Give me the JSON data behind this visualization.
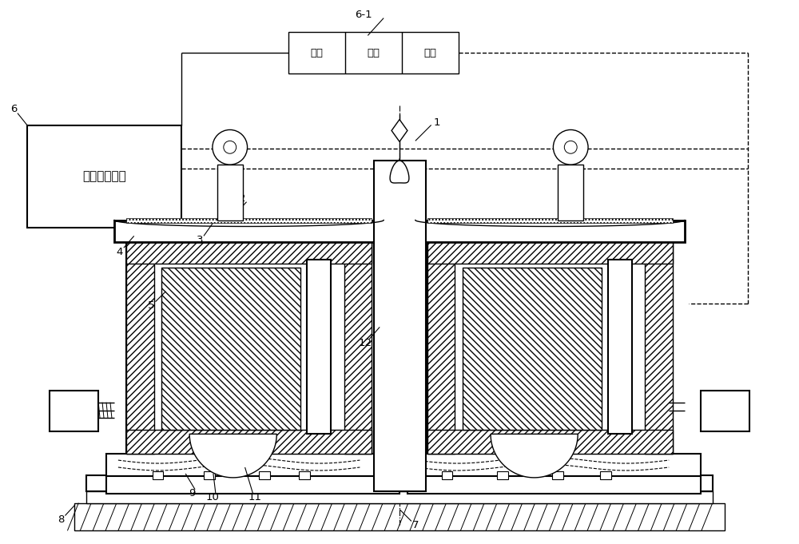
{
  "bg_color": "#ffffff",
  "fig_width": 10.0,
  "fig_height": 6.81,
  "dpi": 100,
  "label_6_text": "电磁控制单元",
  "label_61_yujin": "预紧",
  "label_61_jiajin": "夹紧",
  "label_61_tuici": "退磁"
}
